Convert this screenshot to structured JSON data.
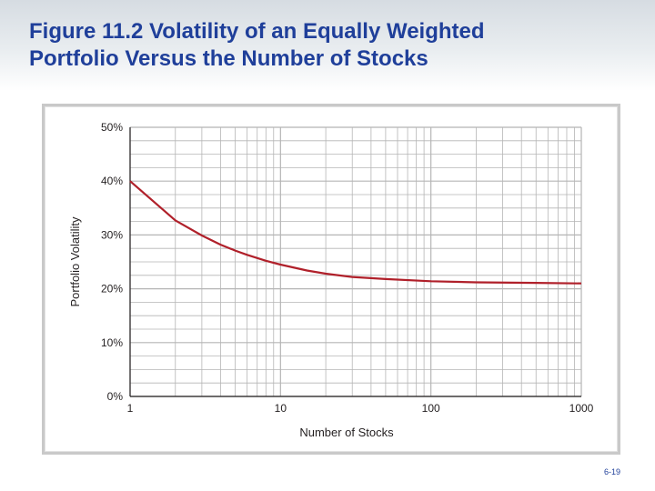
{
  "slide": {
    "title_line1": "Figure 11.2  Volatility of an Equally Weighted",
    "title_line2": "Portfolio Versus the Number of Stocks",
    "page_number": "6-19"
  },
  "colors": {
    "title": "#1f3f9a",
    "curve": "#b0202a",
    "grid": "#b5b5b5",
    "axis": "#231f20"
  },
  "chart_data": {
    "type": "line",
    "title": "",
    "xlabel": "Number of Stocks",
    "ylabel": "Portfolio Volatility",
    "xscale": "log",
    "xlim": [
      1,
      1000
    ],
    "ylim": [
      0,
      50
    ],
    "x_ticks": [
      1,
      10,
      100,
      1000
    ],
    "x_tick_labels": [
      "1",
      "10",
      "100",
      "1000"
    ],
    "y_ticks": [
      0,
      10,
      20,
      30,
      40,
      50
    ],
    "y_tick_labels": [
      "0%",
      "10%",
      "20%",
      "30%",
      "40%",
      "50%"
    ],
    "grid": true,
    "legend": "none",
    "series": [
      {
        "name": "Portfolio Volatility",
        "x": [
          1,
          2,
          3,
          4,
          5,
          6,
          8,
          10,
          15,
          20,
          30,
          50,
          100,
          200,
          500,
          1000
        ],
        "y": [
          40.0,
          32.7,
          29.9,
          28.2,
          27.1,
          26.3,
          25.2,
          24.5,
          23.4,
          22.8,
          22.2,
          21.8,
          21.4,
          21.2,
          21.1,
          21.0
        ]
      }
    ]
  }
}
